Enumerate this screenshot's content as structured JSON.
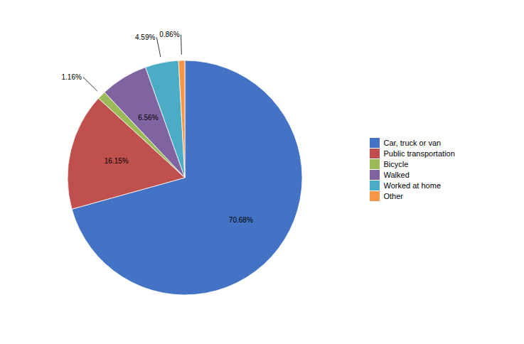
{
  "chart_data": {
    "type": "pie",
    "categories": [
      "Car, truck or van",
      "Public transportation",
      "Bicycle",
      "Walked",
      "Worked at home",
      "Other"
    ],
    "values": [
      70.68,
      16.15,
      1.16,
      6.56,
      4.59,
      0.86
    ],
    "value_labels": [
      "70.68%",
      "16.15%",
      "1.16%",
      "6.56%",
      "4.59%",
      "0.86%"
    ],
    "colors": [
      "#4472C4",
      "#C0504D",
      "#9BBB59",
      "#8064A2",
      "#4BACC6",
      "#F79646"
    ],
    "data_labels": true,
    "legend": "right"
  }
}
